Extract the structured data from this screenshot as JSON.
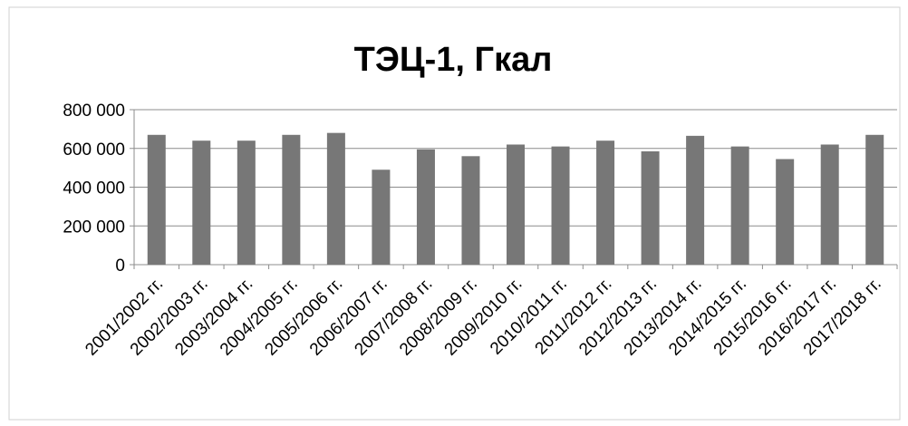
{
  "chart_data": {
    "type": "bar",
    "title": "ТЭЦ-1, Гкал",
    "categories": [
      "2001/2002 гг.",
      "2002/2003 гг.",
      "2003/2004 гг.",
      "2004/2005 гг.",
      "2005/2006 гг.",
      "2006/2007 гг.",
      "2007/2008 гг.",
      "2008/2009 гг.",
      "2009/2010 гг.",
      "2010/2011 гг.",
      "2011/2012 гг.",
      "2012/2013 гг.",
      "2013/2014 гг.",
      "2014/2015 гг.",
      "2015/2016 гг.",
      "2016/2017 гг.",
      "2017/2018 гг."
    ],
    "values": [
      670000,
      640000,
      640000,
      670000,
      680000,
      490000,
      595000,
      560000,
      620000,
      610000,
      640000,
      585000,
      665000,
      610000,
      545000,
      620000,
      670000
    ],
    "color": "#777777",
    "ylim": [
      0,
      800000
    ],
    "yticks": [
      0,
      {
        "value": 200000,
        "label": "200 000"
      },
      {
        "value": 400000,
        "label": "400 000"
      },
      {
        "value": 600000,
        "label": "600 000"
      },
      {
        "value": 800000,
        "label": "800 000"
      }
    ],
    "grid": true
  }
}
